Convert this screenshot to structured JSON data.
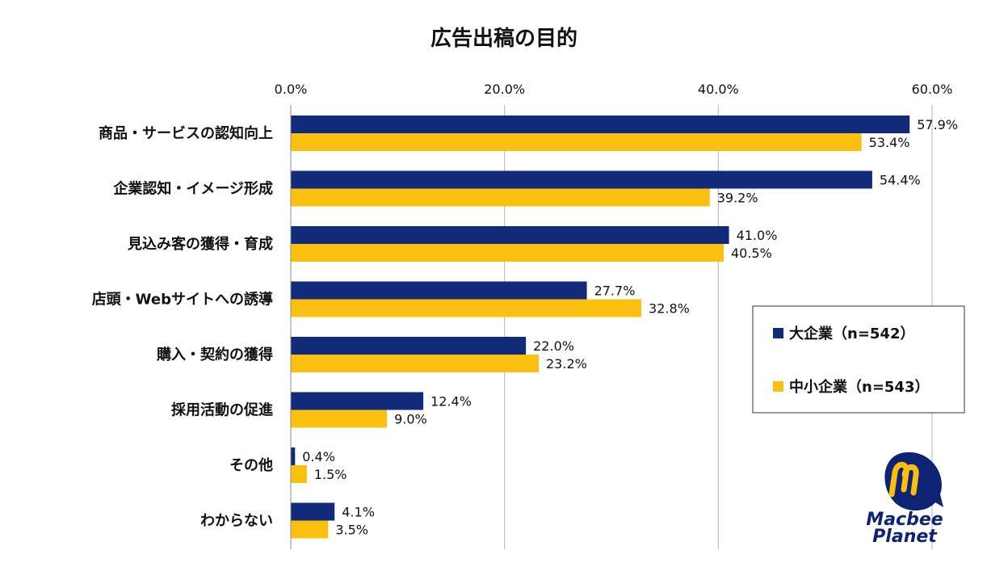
{
  "chart_data": {
    "type": "bar",
    "orientation": "horizontal",
    "title": "広告出稿の目的",
    "xlabel": "",
    "ylabel": "",
    "xlim": [
      0,
      60
    ],
    "ticks": [
      "0.0%",
      "20.0%",
      "40.0%",
      "60.0%"
    ],
    "tick_values": [
      0,
      20,
      40,
      60
    ],
    "grid": true,
    "legend_position": "right",
    "categories": [
      "商品・サービスの認知向上",
      "企業認知・イメージ形成",
      "見込み客の獲得・育成",
      "店頭・Webサイトへの誘導",
      "購入・契約の獲得",
      "採用活動の促進",
      "その他",
      "わからない"
    ],
    "series": [
      {
        "name": "大企業（n=542）",
        "color": "#112a7a",
        "values": [
          57.9,
          54.4,
          41.0,
          27.7,
          22.0,
          12.4,
          0.4,
          4.1
        ],
        "labels": [
          "57.9%",
          "54.4%",
          "41.0%",
          "27.7%",
          "22.0%",
          "12.4%",
          "0.4%",
          "4.1%"
        ]
      },
      {
        "name": "中小企業（n=543）",
        "color": "#fbbf10",
        "values": [
          53.4,
          39.2,
          40.5,
          32.8,
          23.2,
          9.0,
          1.5,
          3.5
        ],
        "labels": [
          "53.4%",
          "39.2%",
          "40.5%",
          "32.8%",
          "23.2%",
          "9.0%",
          "1.5%",
          "3.5%"
        ]
      }
    ]
  },
  "logo": {
    "brand_line1": "Macbee",
    "brand_line2": "Planet",
    "color_dark": "#0e2373",
    "color_accent": "#fbbf10"
  }
}
